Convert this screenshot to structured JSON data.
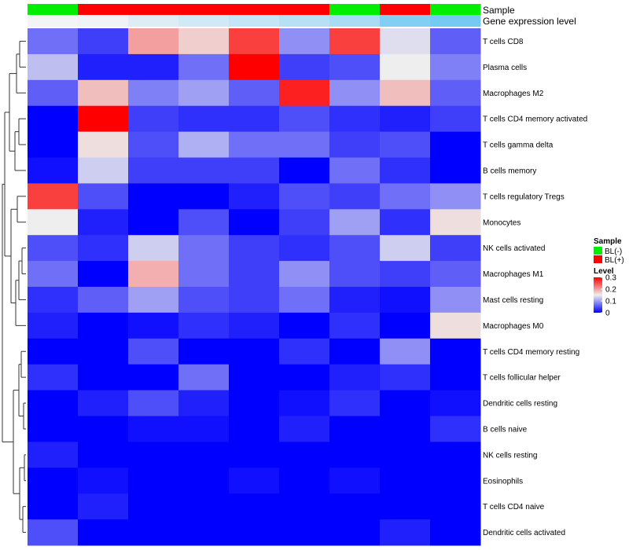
{
  "chart_data": {
    "type": "heatmap",
    "title": "",
    "rows": [
      "T cells CD8",
      "Plasma cells",
      "Macrophages M2",
      "T cells CD4 memory activated",
      "T cells gamma delta",
      "B cells memory",
      "T cells regulatory  Tregs",
      "Monocytes",
      "NK cells activated",
      "Macrophages M1",
      "Mast cells resting",
      "Macrophages M0",
      "T cells CD4 memory resting",
      "T cells follicular helper",
      "Dendritic cells resting",
      "B cells naive",
      "NK cells resting",
      "Eosinophils",
      "T cells CD4 naive",
      "Dendritic cells activated"
    ],
    "values": [
      [
        0.07,
        0.04,
        0.2,
        0.17,
        0.26,
        0.09,
        0.26,
        0.14,
        0.06
      ],
      [
        0.12,
        0.02,
        0.02,
        0.07,
        0.3,
        0.04,
        0.05,
        0.15,
        0.08
      ],
      [
        0.06,
        0.18,
        0.08,
        0.1,
        0.06,
        0.28,
        0.09,
        0.18,
        0.06
      ],
      [
        0.0,
        0.3,
        0.04,
        0.03,
        0.03,
        0.05,
        0.03,
        0.02,
        0.04
      ],
      [
        0.0,
        0.16,
        0.05,
        0.11,
        0.07,
        0.07,
        0.04,
        0.05,
        0.0
      ],
      [
        0.01,
        0.13,
        0.04,
        0.04,
        0.04,
        0.0,
        0.07,
        0.03,
        0.0
      ],
      [
        0.26,
        0.05,
        0.0,
        0.0,
        0.02,
        0.05,
        0.04,
        0.07,
        0.09
      ],
      [
        0.15,
        0.02,
        0.0,
        0.05,
        0.0,
        0.04,
        0.1,
        0.03,
        0.16
      ],
      [
        0.05,
        0.03,
        0.13,
        0.07,
        0.04,
        0.03,
        0.05,
        0.13,
        0.04
      ],
      [
        0.07,
        0.0,
        0.19,
        0.07,
        0.04,
        0.09,
        0.05,
        0.04,
        0.06
      ],
      [
        0.03,
        0.06,
        0.1,
        0.05,
        0.04,
        0.07,
        0.02,
        0.01,
        0.09
      ],
      [
        0.02,
        0.0,
        0.01,
        0.03,
        0.02,
        0.0,
        0.03,
        0.0,
        0.16
      ],
      [
        0.0,
        0.0,
        0.05,
        0.0,
        0.0,
        0.03,
        0.0,
        0.09,
        0.0
      ],
      [
        0.03,
        0.0,
        0.0,
        0.07,
        0.0,
        0.0,
        0.02,
        0.03,
        0.0
      ],
      [
        0.0,
        0.02,
        0.05,
        0.02,
        0.0,
        0.01,
        0.03,
        0.0,
        0.01
      ],
      [
        0.0,
        0.0,
        0.01,
        0.01,
        0.0,
        0.02,
        0.0,
        0.0,
        0.03
      ],
      [
        0.02,
        0.0,
        0.0,
        0.0,
        0.0,
        0.0,
        0.0,
        0.0,
        0.0
      ],
      [
        0.0,
        0.01,
        0.0,
        0.0,
        0.01,
        0.0,
        0.01,
        0.0,
        0.0
      ],
      [
        0.0,
        0.02,
        0.0,
        0.0,
        0.0,
        0.0,
        0.0,
        0.0,
        0.0
      ],
      [
        0.05,
        0.0,
        0.0,
        0.0,
        0.0,
        0.0,
        0.0,
        0.02,
        0.0
      ]
    ],
    "column_annotations": {
      "sample": [
        "BL(-)",
        "BL(+)",
        "BL(+)",
        "BL(+)",
        "BL(+)",
        "BL(+)",
        "BL(-)",
        "BL(+)",
        "BL(-)"
      ],
      "gene_expression_level": [
        0.0,
        0.02,
        0.15,
        0.25,
        0.35,
        0.45,
        0.55,
        0.85,
        0.95
      ]
    },
    "annotation_titles": {
      "sample": "Sample",
      "gene_expression_level": "Gene expression level"
    },
    "legend": {
      "sample": {
        "title": "Sample",
        "items": [
          {
            "label": "BL(-)",
            "color": "#00ee00"
          },
          {
            "label": "BL(+)",
            "color": "#ff0000"
          }
        ]
      },
      "level": {
        "title": "Level",
        "ticks": [
          "0.3",
          "0.2",
          "0.1",
          "0"
        ],
        "tick_values": [
          0.3,
          0.2,
          0.1,
          0.0
        ],
        "range": [
          0,
          0.3
        ]
      }
    },
    "color_scale": {
      "low": "#0000ff",
      "mid": "#eeeeee",
      "high": "#ff0000",
      "domain": [
        0,
        0.15,
        0.3
      ]
    },
    "gene_expression_colors": {
      "low": "#f2f4f6",
      "high": "#6ec8f2"
    },
    "dendrogram": true,
    "grid": false,
    "legend_position": "right"
  }
}
